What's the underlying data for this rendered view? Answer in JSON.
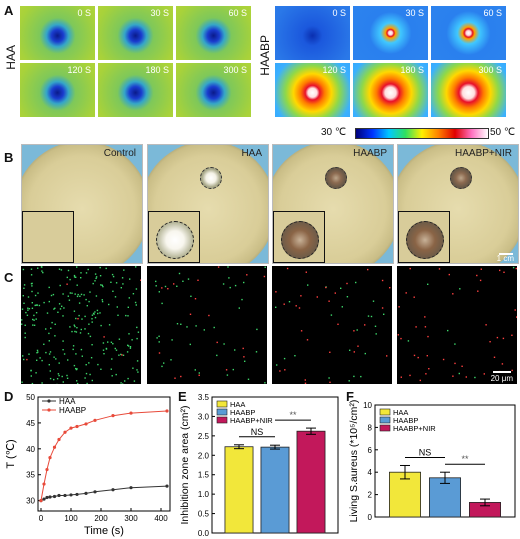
{
  "panels": {
    "a": "A",
    "b": "B",
    "c": "C",
    "d": "D",
    "e": "E",
    "f": "F"
  },
  "thermal": {
    "groups": [
      {
        "name": "HAA",
        "times": [
          "0 S",
          "30 S",
          "60 S",
          "120 S",
          "180 S",
          "300 S"
        ]
      },
      {
        "name": "HAABP",
        "times": [
          "0 S",
          "30 S",
          "60 S",
          "120 S",
          "180 S",
          "300 S"
        ]
      }
    ],
    "colorbar_min": "30 ℃",
    "colorbar_max": "50 ℃"
  },
  "dishes": {
    "labels": [
      "Control",
      "HAA",
      "HAABP",
      "HAABP+NIR"
    ],
    "scale": "1 cm"
  },
  "fluorescence": {
    "scale": "20 μm"
  },
  "chart_data": [
    {
      "type": "line",
      "xlabel": "Time (s)",
      "ylabel": "T (℃)",
      "xlim": [
        -10,
        430
      ],
      "ylim": [
        28,
        50
      ],
      "xticks": [
        0,
        100,
        200,
        300,
        400
      ],
      "yticks": [
        30,
        35,
        40,
        45,
        50
      ],
      "legend": "top-left",
      "series": [
        {
          "name": "HAA",
          "color": "#333333",
          "x": [
            0,
            10,
            20,
            30,
            45,
            60,
            80,
            100,
            120,
            150,
            180,
            240,
            300,
            420
          ],
          "y": [
            30.0,
            30.3,
            30.6,
            30.7,
            30.8,
            31.0,
            31.0,
            31.1,
            31.2,
            31.4,
            31.7,
            32.1,
            32.5,
            32.8
          ]
        },
        {
          "name": "HAABP",
          "color": "#e84a3a",
          "x": [
            0,
            10,
            20,
            30,
            45,
            60,
            80,
            100,
            120,
            150,
            180,
            240,
            300,
            420
          ],
          "y": [
            30.0,
            33.2,
            36.0,
            38.3,
            40.3,
            41.8,
            43.2,
            44.0,
            44.3,
            44.8,
            45.5,
            46.4,
            46.9,
            47.3
          ]
        }
      ]
    },
    {
      "type": "bar",
      "xlabel": "",
      "ylabel": "Inhibition zone area (cm²)",
      "ylim": [
        0.0,
        3.5
      ],
      "yticks": [
        "0.0",
        "0.5",
        "1.0",
        "1.5",
        "2.0",
        "2.5",
        "3.0",
        "3.5"
      ],
      "legend": "top-left",
      "series": [
        {
          "name": "HAA",
          "value": 2.22,
          "error": 0.05,
          "color": "#f2e73a"
        },
        {
          "name": "HAABP",
          "value": 2.21,
          "error": 0.05,
          "color": "#5a9bd5"
        },
        {
          "name": "HAABP+NIR",
          "value": 2.62,
          "error": 0.08,
          "color": "#c2185b"
        }
      ],
      "annotations": [
        {
          "text": "NS",
          "between": [
            0,
            1
          ]
        },
        {
          "text": "**",
          "between": [
            1,
            2
          ]
        }
      ]
    },
    {
      "type": "bar",
      "xlabel": "",
      "ylabel": "Living S.aureus (*10⁵/cm²)",
      "ylim": [
        0,
        10
      ],
      "yticks": [
        "0",
        "2",
        "4",
        "6",
        "8",
        "10"
      ],
      "legend": "top-left",
      "series": [
        {
          "name": "HAA",
          "value": 4.0,
          "error": 0.6,
          "color": "#f2e73a"
        },
        {
          "name": "HAABP",
          "value": 3.5,
          "error": 0.5,
          "color": "#5a9bd5"
        },
        {
          "name": "HAABP+NIR",
          "value": 1.3,
          "error": 0.3,
          "color": "#c2185b"
        }
      ],
      "annotations": [
        {
          "text": "NS",
          "between": [
            0,
            1
          ]
        },
        {
          "text": "**",
          "between": [
            1,
            2
          ]
        }
      ]
    }
  ]
}
